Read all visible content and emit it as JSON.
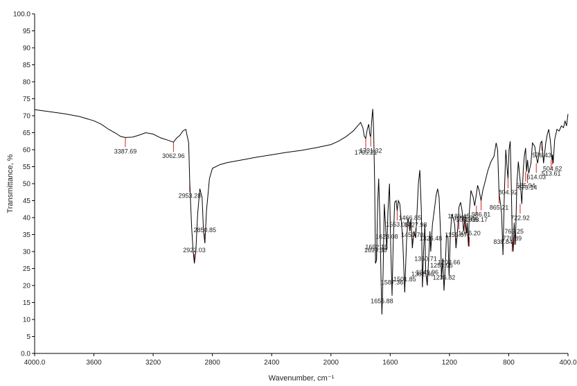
{
  "chart_data": {
    "type": "line",
    "title": "",
    "xlabel": "Wavenumber, cm⁻¹",
    "ylabel": "Transmittance, %",
    "xlim": [
      4000,
      400
    ],
    "ylim": [
      0,
      100
    ],
    "x_reversed": true,
    "grid": false,
    "legend": "none",
    "xticks": [
      4000,
      3600,
      3200,
      2800,
      2400,
      2000,
      1600,
      1200,
      800,
      400
    ],
    "xtick_labels": [
      "4000.0",
      "3600",
      "3200",
      "2800",
      "2400",
      "2000",
      "1600",
      "1200",
      "800",
      "400.0"
    ],
    "yticks": [
      0,
      5,
      10,
      15,
      20,
      25,
      30,
      35,
      40,
      45,
      50,
      55,
      60,
      65,
      70,
      75,
      80,
      85,
      90,
      95,
      100
    ],
    "ytick_labels": [
      "0.0",
      "5",
      "10",
      "15",
      "20",
      "25",
      "30",
      "35",
      "40",
      "45",
      "50",
      "55",
      "60",
      "65",
      "70",
      "75",
      "80",
      "85",
      "90",
      "95",
      "100.0"
    ],
    "line_color": "#000000",
    "marker_color": "#d42020",
    "series": [
      {
        "x": [
          4000,
          3900,
          3800,
          3700,
          3600,
          3550,
          3500,
          3450,
          3420,
          3387.69,
          3340,
          3300,
          3250,
          3200,
          3150,
          3100,
          3062.96,
          3040,
          3020,
          3000,
          2980,
          2960,
          2953.28,
          2940,
          2930,
          2922.03,
          2912,
          2900,
          2885,
          2870,
          2860,
          2850.85,
          2840,
          2820,
          2800,
          2750,
          2700,
          2600,
          2500,
          2400,
          2300,
          2200,
          2100,
          2000,
          1950,
          1900,
          1850,
          1820,
          1800,
          1785,
          1775,
          1765.21,
          1755,
          1745,
          1738,
          1731.32,
          1725,
          1718,
          1712,
          1705,
          1699.38,
          1692.15,
          1685,
          1678,
          1670,
          1662,
          1655.88,
          1648,
          1640,
          1632,
          1623.08,
          1615,
          1605,
          1597,
          1587.36,
          1580,
          1570,
          1560,
          1553.08,
          1545,
          1535,
          1525,
          1515,
          1501.85,
          1490,
          1480,
          1466.85,
          1460,
          1450.7,
          1440,
          1427.98,
          1420,
          1410,
          1400,
          1390,
          1382.46,
          1375,
          1366,
          1360.71,
          1349.96,
          1340,
          1332,
          1326.48,
          1315,
          1300,
          1290,
          1280,
          1270,
          1260,
          1253.95,
          1245,
          1236.82,
          1228,
          1220,
          1210,
          1202.66,
          1195,
          1185,
          1175,
          1165,
          1155.87,
          1145,
          1136.45,
          1125,
          1115,
          1105,
          1095.25,
          1085,
          1080.05,
          1072,
          1066.2,
          1055,
          1040,
          1030,
          1018.17,
          1010,
          1000,
          986.81,
          975,
          960,
          940,
          920,
          900,
          885,
          875,
          865.21,
          855,
          848,
          838.84,
          830,
          820,
          810,
          804.92,
          798,
          790,
          782,
          776.89,
          770,
          763.25,
          755,
          745,
          735,
          722.92,
          712,
          702,
          695,
          685.94,
          680,
          673.14,
          665,
          650,
          640,
          625,
          614.03,
          605,
          595,
          585,
          576.43,
          565,
          550,
          540,
          530,
          520,
          513.61,
          508,
          504.62,
          500,
          490,
          475,
          460,
          445,
          430,
          420,
          410,
          400
        ],
        "y": [
          71.8,
          71.2,
          70.6,
          69.8,
          68.5,
          67.5,
          66.0,
          64.8,
          63.9,
          63.6,
          63.7,
          64.2,
          65.0,
          64.6,
          63.5,
          62.8,
          62.2,
          63.5,
          64.2,
          65.5,
          66.0,
          62.0,
          50.5,
          37.0,
          30.0,
          26.5,
          30.0,
          41.0,
          48.5,
          46.0,
          36.0,
          32.5,
          42.0,
          51.5,
          54.5,
          55.6,
          56.2,
          57.0,
          57.8,
          58.5,
          59.2,
          59.8,
          60.6,
          61.5,
          62.5,
          63.8,
          65.5,
          67.0,
          68.0,
          66.5,
          64.0,
          63.3,
          66.0,
          67.5,
          64.5,
          63.8,
          68.5,
          72.0,
          66.0,
          50.0,
          26.5,
          27.5,
          44.0,
          51.5,
          40.0,
          22.0,
          11.5,
          24.0,
          44.0,
          38.0,
          30.5,
          42.0,
          50.0,
          32.0,
          17.0,
          32.0,
          44.5,
          45.0,
          42.0,
          45.0,
          44.0,
          39.0,
          33.0,
          18.0,
          33.0,
          40.0,
          36.0,
          39.5,
          31.0,
          36.0,
          34.0,
          40.5,
          50.0,
          54.0,
          42.0,
          19.5,
          30.0,
          38.0,
          24.0,
          20.0,
          28.0,
          36.0,
          30.0,
          38.0,
          43.0,
          46.5,
          48.5,
          46.0,
          35.0,
          22.0,
          28.0,
          18.5,
          26.0,
          35.0,
          34.0,
          23.0,
          34.0,
          41.0,
          40.0,
          38.0,
          31.0,
          36.5,
          43.0,
          44.5,
          42.0,
          36.0,
          40.0,
          35.5,
          38.5,
          31.5,
          41.5,
          48.0,
          46.0,
          43.5,
          47.0,
          49.5,
          48.0,
          45.0,
          48.0,
          50.5,
          54.0,
          56.5,
          58.0,
          62.0,
          60.0,
          47.0,
          44.0,
          41.0,
          29.0,
          46.0,
          60.0,
          54.0,
          51.5,
          60.0,
          62.5,
          48.0,
          35.0,
          30.0,
          38.5,
          32.0,
          50.0,
          56.5,
          51.0,
          44.0,
          54.0,
          58.0,
          60.5,
          53.5,
          57.0,
          53.0,
          56.0,
          62.0,
          61.0,
          58.0,
          56.0,
          59.0,
          62.0,
          62.5,
          56.0,
          62.0,
          64.5,
          66.0,
          63.0,
          60.0,
          57.0,
          58.5,
          56.0,
          63.0,
          66.0,
          65.5,
          67.0,
          66.5,
          68.5,
          67.0,
          70.5
        ]
      }
    ],
    "peak_annotations": [
      {
        "label": "3387.69",
        "x": 3387.69,
        "y": 63.6
      },
      {
        "label": "3062.96",
        "x": 3062.96,
        "y": 62.2
      },
      {
        "label": "2953.28",
        "x": 2953.28,
        "y": 50.5
      },
      {
        "label": "2922.03",
        "x": 2922.03,
        "y": 26.5
      },
      {
        "label": "2850.85",
        "x": 2850.85,
        "y": 32.5
      },
      {
        "label": "1765.21",
        "x": 1765.21,
        "y": 63.3
      },
      {
        "label": "1731.32",
        "x": 1731.32,
        "y": 63.8
      },
      {
        "label": "1692.15",
        "x": 1692.15,
        "y": 27.5
      },
      {
        "label": "1699.38",
        "x": 1699.38,
        "y": 26.5
      },
      {
        "label": "1655.88",
        "x": 1655.88,
        "y": 11.5
      },
      {
        "label": "1623.08",
        "x": 1623.08,
        "y": 30.5
      },
      {
        "label": "1587.36",
        "x": 1587.36,
        "y": 17.0
      },
      {
        "label": "1553.08",
        "x": 1553.08,
        "y": 42.0
      },
      {
        "label": "1501.85",
        "x": 1501.85,
        "y": 18.0
      },
      {
        "label": "1466.85",
        "x": 1466.85,
        "y": 36.0
      },
      {
        "label": "1450.70",
        "x": 1450.7,
        "y": 31.0
      },
      {
        "label": "1427.98",
        "x": 1427.98,
        "y": 34.0
      },
      {
        "label": "1382.46",
        "x": 1382.46,
        "y": 19.5
      },
      {
        "label": "1360.71",
        "x": 1360.71,
        "y": 24.0
      },
      {
        "label": "1349.96",
        "x": 1349.96,
        "y": 20.0
      },
      {
        "label": "1326.48",
        "x": 1326.48,
        "y": 30.0
      },
      {
        "label": "1253.95",
        "x": 1253.95,
        "y": 22.0
      },
      {
        "label": "1236.82",
        "x": 1236.82,
        "y": 18.5
      },
      {
        "label": "1202.66",
        "x": 1202.66,
        "y": 23.0
      },
      {
        "label": "1155.87",
        "x": 1155.87,
        "y": 31.0
      },
      {
        "label": "1136.45",
        "x": 1136.45,
        "y": 36.5
      },
      {
        "label": "1095.25",
        "x": 1095.25,
        "y": 36.0
      },
      {
        "label": "1080.05",
        "x": 1080.05,
        "y": 35.5
      },
      {
        "label": "1066.20",
        "x": 1066.2,
        "y": 31.5
      },
      {
        "label": "1018.17",
        "x": 1018.17,
        "y": 43.5
      },
      {
        "label": "986.81",
        "x": 986.81,
        "y": 45.0
      },
      {
        "label": "865.21",
        "x": 865.21,
        "y": 47.0
      },
      {
        "label": "838.84",
        "x": 838.84,
        "y": 29.0
      },
      {
        "label": "804.92",
        "x": 804.92,
        "y": 51.5
      },
      {
        "label": "776.89",
        "x": 776.89,
        "y": 30.0
      },
      {
        "label": "763.25",
        "x": 763.25,
        "y": 32.0
      },
      {
        "label": "722.92",
        "x": 722.92,
        "y": 44.0
      },
      {
        "label": "685.94",
        "x": 685.94,
        "y": 53.5
      },
      {
        "label": "673.14",
        "x": 673.14,
        "y": 53.0
      },
      {
        "label": "614.03",
        "x": 614.03,
        "y": 56.0
      },
      {
        "label": "576.43",
        "x": 576.43,
        "y": 62.5
      },
      {
        "label": "513.61",
        "x": 513.61,
        "y": 57.0
      },
      {
        "label": "504.62",
        "x": 504.62,
        "y": 58.5
      }
    ]
  }
}
